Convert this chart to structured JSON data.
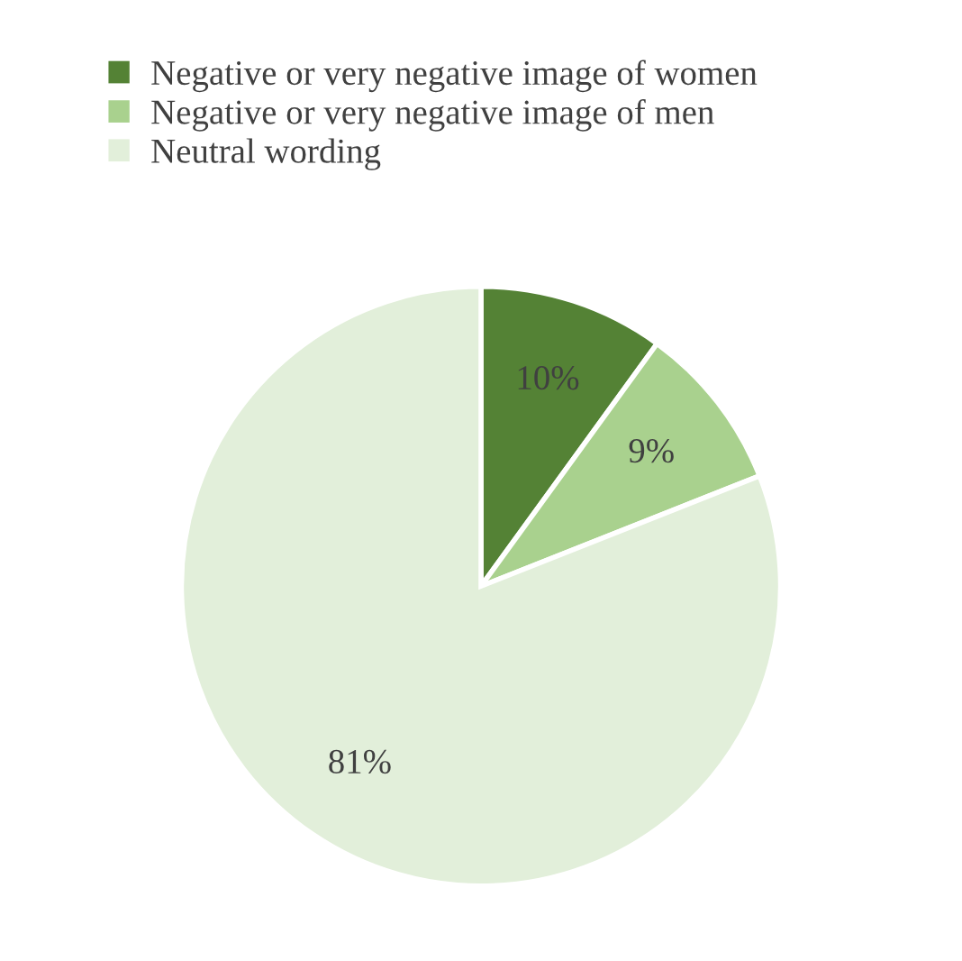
{
  "chart_data": {
    "type": "pie",
    "categories": [
      "Negative or very negative image of women",
      "Negative or very negative image of men",
      "Neutral wording"
    ],
    "values": [
      10,
      9,
      81
    ],
    "colors": [
      "#548235",
      "#a9d18e",
      "#e2efda"
    ],
    "value_labels": [
      "10%",
      "9%",
      "81%"
    ],
    "legend": "top"
  }
}
